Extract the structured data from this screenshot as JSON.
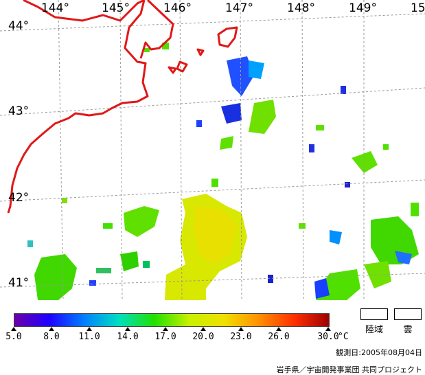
{
  "map": {
    "longitudes": [
      "144°",
      "145°",
      "146°",
      "147°",
      "148°",
      "149°",
      "15"
    ],
    "latitudes": [
      "44°",
      "43°",
      "42°",
      "41°"
    ]
  },
  "colorbar": {
    "colors": [
      "#6a00a8",
      "#2000ff",
      "#0080ff",
      "#00e0c0",
      "#20e000",
      "#c8f000",
      "#f0e000",
      "#ff9000",
      "#ff3000",
      "#a00000"
    ],
    "ticks": [
      "5.0",
      "8.0",
      "11.0",
      "14.0",
      "17.0",
      "20.0",
      "23.0",
      "26.0",
      "30.0"
    ],
    "unit": "°C"
  },
  "legend": {
    "land": "陸域",
    "cloud": "雲"
  },
  "footer": {
    "observation_date": "観測日:2005年08月04日",
    "credit": "岩手県／宇宙開発事業団  共同プロジェクト"
  }
}
